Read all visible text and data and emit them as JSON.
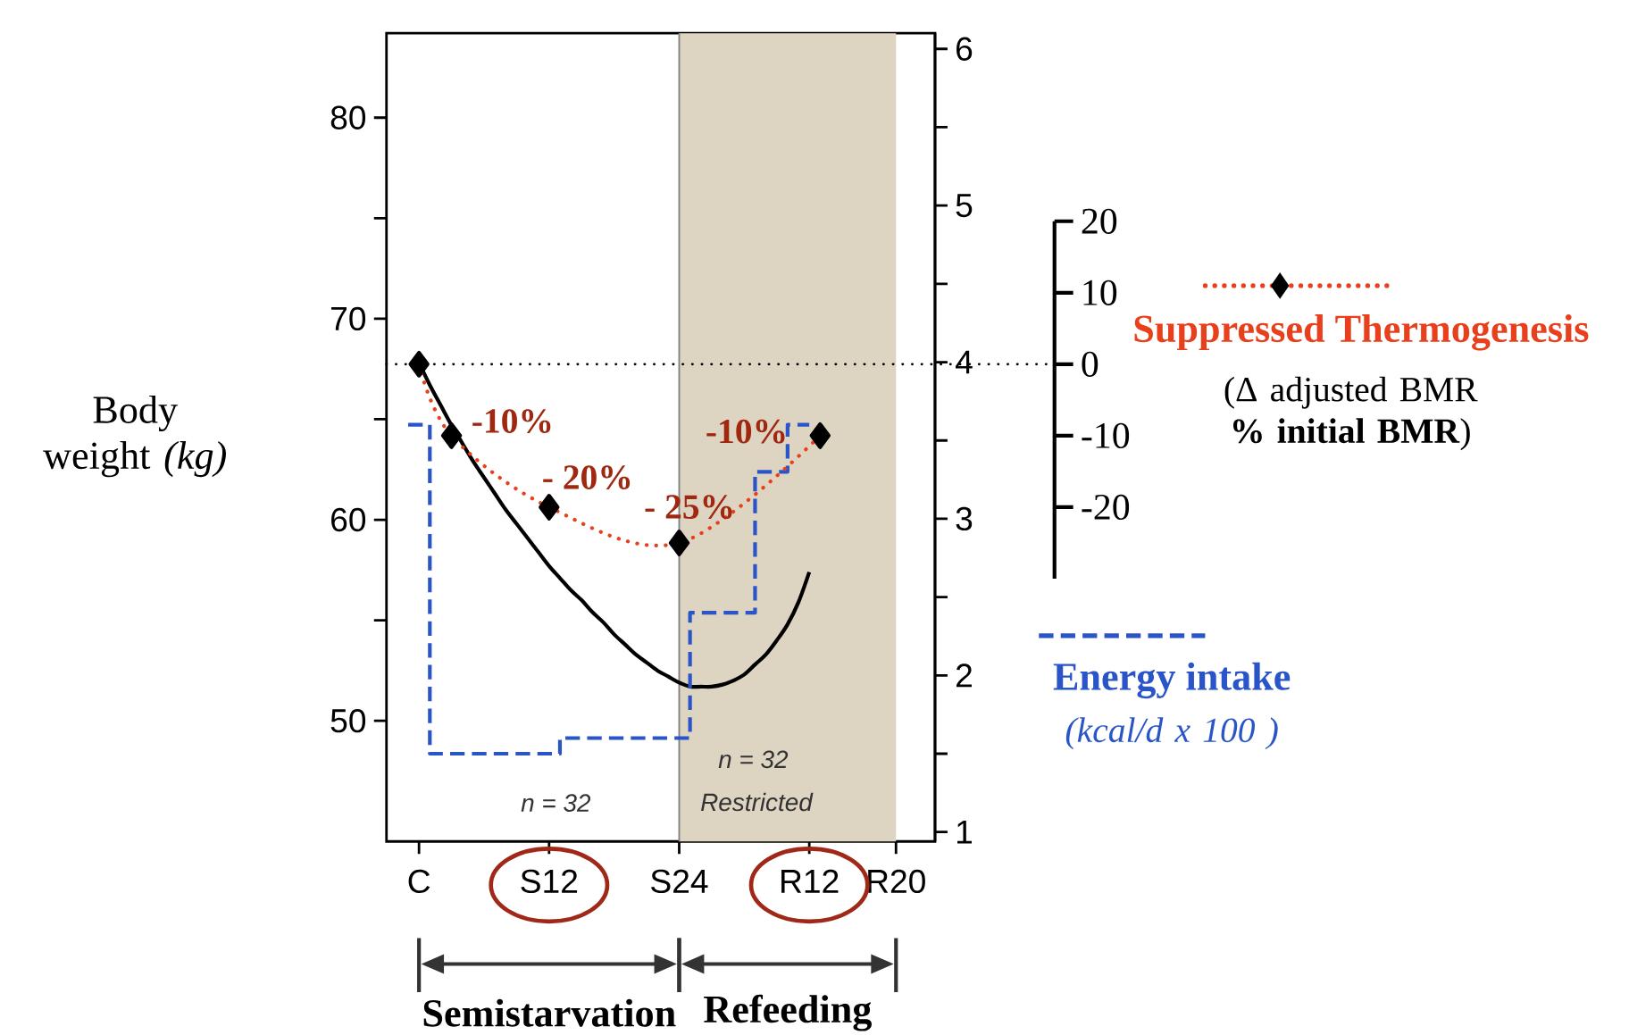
{
  "chart_data": {
    "type": "line",
    "categories": [
      null,
      null,
      "C",
      null,
      null,
      null,
      null,
      null,
      null,
      null,
      null,
      null,
      null,
      null,
      "S12",
      null,
      null,
      null,
      null,
      null,
      null,
      null,
      null,
      null,
      null,
      null,
      "S24",
      null,
      null,
      null,
      null,
      null,
      null,
      null,
      null,
      null,
      null,
      null,
      "R12",
      null,
      null,
      null,
      null,
      null,
      null,
      null,
      "R20",
      null,
      null,
      null
    ],
    "ylim": [
      44,
      84.2
    ],
    "yticks": [
      50,
      {
        "value": 55,
        "label": null
      },
      60,
      {
        "value": 65,
        "label": null
      },
      70,
      {
        "value": 75,
        "label": null
      },
      80
    ],
    "y2lim": [
      0.94,
      6.1
    ],
    "y2ticks": [
      1,
      {
        "value": 1.5,
        "label": null
      },
      2,
      {
        "value": 2.5,
        "label": null
      },
      3,
      {
        "value": 3.5,
        "label": null
      },
      4,
      {
        "value": 4.5,
        "label": null
      },
      5,
      {
        "value": 5.5,
        "label": null
      },
      6
    ],
    "y3lim": [
      -30,
      20
    ],
    "y3ticks": [
      -20,
      -10,
      0,
      10,
      20
    ],
    "ylabel": "Body weight *(kg)*",
    "y2label": "(kcal/d x 100 )",
    "y3label": "(Δ adjusted BMR **% initial BMR**)",
    "legend": "right",
    "series": [
      {
        "type": "line",
        "color": "#000000",
        "line_style": "solid",
        "marker": "none",
        "values": [
          null,
          null,
          67.8,
          66.7,
          65.7,
          64.7,
          63.8,
          62.9,
          62.1,
          61.3,
          60.5,
          59.8,
          59.1,
          58.4,
          57.7,
          57.1,
          56.5,
          56.0,
          55.4,
          54.9,
          54.3,
          53.8,
          53.3,
          52.9,
          52.5,
          52.2,
          51.9,
          51.7,
          51.7,
          51.7,
          51.8,
          52.0,
          52.3,
          52.8,
          53.3,
          54.0,
          54.8,
          55.9,
          57.4,
          null,
          null,
          null,
          null,
          null,
          null,
          null,
          null,
          null,
          null,
          null
        ]
      },
      {
        "type": "line",
        "name": "Suppressed Thermogenesis",
        "axis": "y3",
        "color": "#e8401c",
        "line_style": "dotted",
        "marker": "diamond",
        "values": [
          null,
          null,
          0,
          null,
          null,
          -10,
          null,
          null,
          null,
          null,
          null,
          null,
          null,
          null,
          -20,
          null,
          null,
          null,
          null,
          null,
          null,
          null,
          null,
          null,
          null,
          null,
          -25,
          null,
          null,
          null,
          null,
          null,
          null,
          null,
          null,
          null,
          null,
          null,
          null,
          -10,
          null,
          null,
          null,
          null,
          null,
          null,
          null,
          null,
          null,
          null
        ],
        "value_labels": [
          null,
          null,
          null,
          null,
          null,
          "-10%",
          null,
          null,
          null,
          null,
          null,
          null,
          null,
          null,
          "- 20%",
          null,
          null,
          null,
          null,
          null,
          null,
          null,
          null,
          null,
          null,
          null,
          "- 25%",
          null,
          null,
          null,
          null,
          null,
          null,
          null,
          null,
          null,
          null,
          null,
          null,
          "-10%",
          null,
          null,
          null,
          null,
          null,
          null,
          null,
          null,
          null,
          null
        ]
      },
      {
        "type": "step",
        "name": "Energy intake",
        "axis": "y2",
        "color": "#2a55c8",
        "line_style": "dashed",
        "marker": "none",
        "values": [
          null,
          3.6,
          3.6,
          1.5,
          1.5,
          1.5,
          1.5,
          1.5,
          1.5,
          1.5,
          1.5,
          1.5,
          1.5,
          1.5,
          1.5,
          1.6,
          1.6,
          1.6,
          1.6,
          1.6,
          1.6,
          1.6,
          1.6,
          1.6,
          1.6,
          1.6,
          1.6,
          2.4,
          2.4,
          2.4,
          2.4,
          2.4,
          2.4,
          3.3,
          3.3,
          3.3,
          3.6,
          3.6,
          3.6,
          null,
          null,
          null,
          null,
          null,
          null,
          null,
          null,
          null,
          null,
          null
        ]
      }
    ],
    "ref_lines": [
      {
        "axis": "y3",
        "value": 0,
        "line_style": "dotted",
        "color": "#000000"
      }
    ],
    "bands": [
      {
        "axis": "x",
        "from": "S24",
        "to": "R20",
        "color": "#ddd4c2"
      }
    ],
    "annotations": [
      "n = 32",
      "n = 32",
      "Restricted",
      "Semistarvation",
      "Refeeding"
    ]
  }
}
